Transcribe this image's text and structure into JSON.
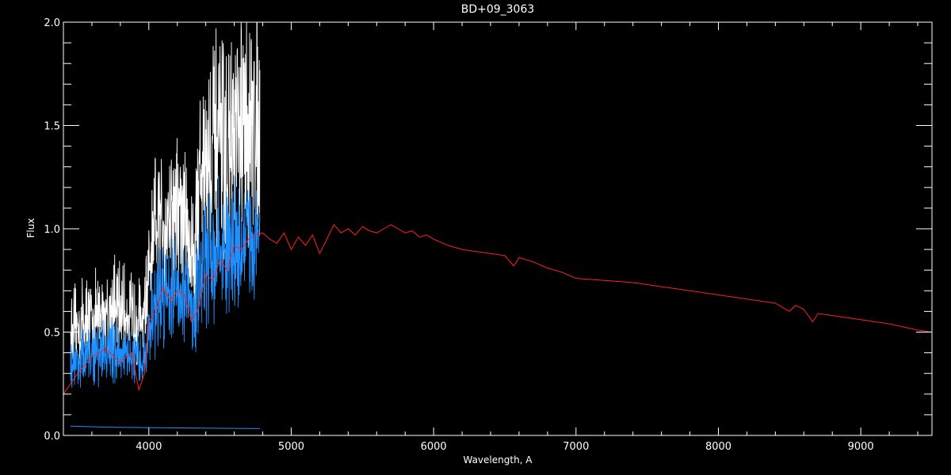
{
  "chart_data": {
    "type": "line",
    "title": "BD+09_3063",
    "xlabel": "Wavelength, A",
    "ylabel": "Flux",
    "xlim": [
      3400,
      9500
    ],
    "ylim": [
      0.0,
      2.0
    ],
    "xticks": [
      4000,
      5000,
      6000,
      7000,
      8000,
      9000
    ],
    "xtick_labels": [
      "4000",
      "5000",
      "6000",
      "7000",
      "8000",
      "9000"
    ],
    "yticks": [
      0.0,
      0.5,
      1.0,
      1.5,
      2.0
    ],
    "ytick_labels": [
      "0.0",
      "0.5",
      "1.0",
      "1.5",
      "2.0"
    ],
    "grid": false,
    "legend": "none",
    "background": "#000000",
    "series": [
      {
        "color": "#ffffff",
        "noisy": true,
        "x": [
          3450,
          3550,
          3650,
          3750,
          3850,
          3950,
          3990,
          4050,
          4150,
          4250,
          4320,
          4350,
          4450,
          4550,
          4650,
          4780
        ],
        "y": [
          0.5,
          0.56,
          0.58,
          0.62,
          0.6,
          0.55,
          0.7,
          1.0,
          1.1,
          1.05,
          0.85,
          1.25,
          1.4,
          1.35,
          1.45,
          1.55
        ]
      },
      {
        "color": "#1e90ff",
        "noisy": true,
        "x": [
          3450,
          3550,
          3650,
          3750,
          3850,
          3950,
          3990,
          4050,
          4150,
          4250,
          4320,
          4350,
          4450,
          4550,
          4650,
          4780
        ],
        "y": [
          0.35,
          0.38,
          0.4,
          0.42,
          0.38,
          0.35,
          0.45,
          0.65,
          0.72,
          0.7,
          0.55,
          0.8,
          0.88,
          0.9,
          0.92,
          0.97
        ]
      },
      {
        "color": "#1e90ff",
        "noisy": false,
        "x": [
          3450,
          3700,
          4000,
          4300,
          4600,
          4780
        ],
        "y": [
          0.045,
          0.04,
          0.038,
          0.036,
          0.034,
          0.033
        ]
      },
      {
        "color": "#ff2020",
        "noisy": false,
        "x": [
          3400,
          3500,
          3600,
          3700,
          3800,
          3880,
          3930,
          3970,
          4000,
          4050,
          4100,
          4150,
          4200,
          4250,
          4300,
          4340,
          4400,
          4450,
          4500,
          4550,
          4600,
          4650,
          4700,
          4750,
          4800,
          4850,
          4900,
          4950,
          5000,
          5050,
          5100,
          5150,
          5200,
          5250,
          5300,
          5350,
          5400,
          5450,
          5500,
          5550,
          5600,
          5650,
          5700,
          5750,
          5800,
          5850,
          5900,
          5950,
          6000,
          6100,
          6200,
          6300,
          6400,
          6500,
          6563,
          6600,
          6700,
          6800,
          6900,
          7000,
          7200,
          7400,
          7600,
          7800,
          8000,
          8200,
          8400,
          8498,
          8542,
          8600,
          8662,
          8700,
          8800,
          9000,
          9200,
          9400,
          9500
        ],
        "y": [
          0.2,
          0.3,
          0.38,
          0.42,
          0.35,
          0.4,
          0.22,
          0.3,
          0.55,
          0.6,
          0.72,
          0.65,
          0.7,
          0.68,
          0.55,
          0.6,
          0.78,
          0.75,
          0.85,
          0.8,
          0.92,
          0.9,
          0.95,
          0.97,
          0.98,
          0.95,
          0.93,
          0.98,
          0.9,
          0.96,
          0.92,
          0.97,
          0.88,
          0.95,
          1.02,
          0.98,
          1.0,
          0.97,
          1.01,
          0.99,
          0.98,
          1.0,
          1.02,
          1.0,
          0.98,
          0.99,
          0.96,
          0.97,
          0.95,
          0.92,
          0.9,
          0.89,
          0.88,
          0.87,
          0.82,
          0.86,
          0.84,
          0.81,
          0.79,
          0.76,
          0.75,
          0.74,
          0.72,
          0.7,
          0.68,
          0.66,
          0.64,
          0.6,
          0.63,
          0.61,
          0.55,
          0.59,
          0.58,
          0.56,
          0.54,
          0.51,
          0.5
        ]
      }
    ]
  }
}
